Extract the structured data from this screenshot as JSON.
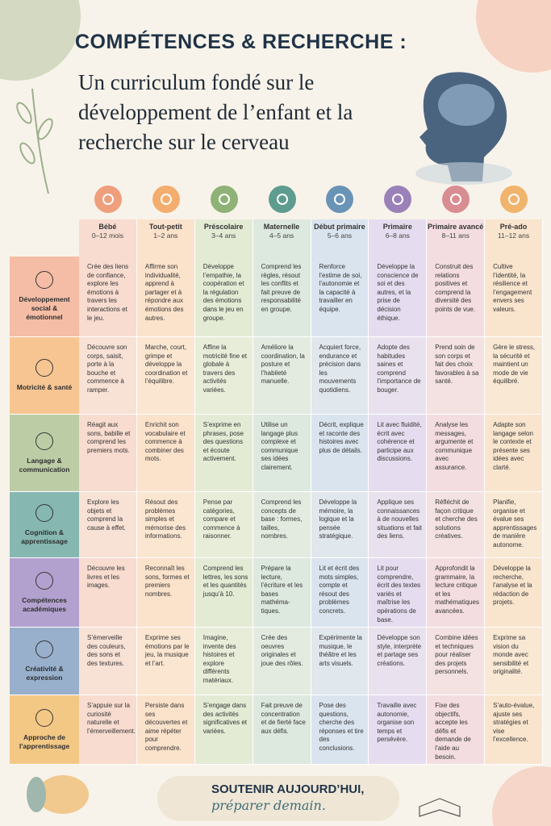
{
  "header": {
    "title": "COMPÉTENCES & RECHERCHE :",
    "subtitle": "Un curriculum fondé sur le développement de l’enfant et la recherche sur le cerveau"
  },
  "table": {
    "stages": [
      {
        "name": "Bébé",
        "ages": "0–12 mois"
      },
      {
        "name": "Tout-petit",
        "ages": "1–2 ans"
      },
      {
        "name": "Préscolaire",
        "ages": "3–4 ans"
      },
      {
        "name": "Maternelle",
        "ages": "4–5 ans"
      },
      {
        "name": "Début primaire",
        "ages": "5–6 ans"
      },
      {
        "name": "Primaire",
        "ages": "6–8 ans"
      },
      {
        "name": "Primaire avancé",
        "ages": "8–11 ans"
      },
      {
        "name": "Pré-ado",
        "ages": "11–12 ans"
      }
    ],
    "domains": [
      "Développement social & émotionnel",
      "Motricité & santé",
      "Langage & communication",
      "Cognition & apprentissage",
      "Compétences académiques",
      "Créativité & expression",
      "Approche de l’apprentissage"
    ],
    "rows": [
      [
        "Crée des liens de confiance, explore les émotions à travers les interactions et le jeu.",
        "Affirme son individualité, apprend à partager et à répondre aux émotions des autres.",
        "Développe l’empathie, la coopération et la régulation des émotions dans le jeu en groupe.",
        "Comprend les règles, résout les conflits et fait preuve de responsabilité en groupe.",
        "Renforce l’estime de soi, l’autonomie et la capacité à travailler en équipe.",
        "Développe la conscience de soi et des autres, et la prise de décision éthique.",
        "Construit des relations positives et comprend la diversité des points de vue.",
        "Cultive l’identité, la résilience et l’engagement envers ses valeurs."
      ],
      [
        "Découvre son corps, saisit, porte à la bouche et commence à ramper.",
        "Marche, court, grimpe et développe la coordination et l’équilibre.",
        "Affine la motricité fine et globale à travers des activités variées.",
        "Améliore la coordination, la posture et l’habileté manuelle.",
        "Acquiert force, endurance et précision dans les mouvements quotidiens.",
        "Adopte des habitudes saines et comprend l’importance de bouger.",
        "Prend soin de son corps et fait des choix favorables à sa santé.",
        "Gère le stress, la sécurité et maintient un mode de vie équilibré."
      ],
      [
        "Réagit aux sons, babille et comprend les premiers mots.",
        "Enrichit son vocabulaire et commence à combiner des mots.",
        "S’exprime en phrases, pose des questions et écoute activement.",
        "Utilise un langage plus complexe et communique ses idées clairement.",
        "Décrit, explique et raconte des histoires avec plus de détails.",
        "Lit avec fluidité, écrit avec cohérence et participe aux discussions.",
        "Analyse les messages, argumente et communique avec assurance.",
        "Adapte son langage selon le contexte et présente ses idées avec clarté."
      ],
      [
        "Explore les objets et comprend la cause à effet.",
        "Résout des problèmes simples et mémorise des informations.",
        "Pense par catégories, compare et commence à raisonner.",
        "Comprend les concepts de base : formes, tailles, nombres.",
        "Développe la mémoire, la logique et la pensée stratégique.",
        "Applique ses connaissances à de nouvelles situations et fait des liens.",
        "Réfléchit de façon critique et cherche des solutions créatives.",
        "Planifie, organise et évalue ses apprentissages de manière autonome."
      ],
      [
        "Découvre les livres et les images.",
        "Reconnaît les sons, formes et premiers nombres.",
        "Comprend les lettres, les sons et les quantités jusqu’à 10.",
        "Prépare la lecture, l’écriture et les bases mathéma­tiques.",
        "Lit et écrit des mots simples, compte et résout des problèmes concrets.",
        "Lit pour comprendre, écrit des textes variés et maîtrise les opérations de base.",
        "Approfondit la grammaire, la lecture critique et les mathématiques avancées.",
        "Développe la recherche, l’analyse et la rédaction de projets."
      ],
      [
        "S’émerveille des couleurs, des sons et des textures.",
        "Exprime ses émotions par le jeu, la musique et l’art.",
        "Imagine, invente des histoires et explore différents matériaux.",
        "Crée des oeuvres originales et joue des rôles.",
        "Expérimente la musique, le théâtre et les arts visuels.",
        "Développe son style, interprète et partage ses créations.",
        "Combine idées et techniques pour réaliser des projets personnels.",
        "Exprime sa vision du monde avec sensibilité et originalité."
      ],
      [
        "S’appuie sur la curiosité naturelle et l’émerveillement.",
        "Persiste dans ses découvertes et aime répéter pour comprendre.",
        "S’engage dans des activités significatives et variées.",
        "Fait preuve de concentration et de fierté face aux défis.",
        "Pose des questions, cherche des réponses et tire des conclusions.",
        "Travaille avec autonomie, organise son temps et persévère.",
        "Fixe des objectifs, accepte les défis et demande de l’aide au besoin.",
        "S’auto-évalue, ajuste ses stratégies et vise l’excellence."
      ]
    ]
  },
  "footer": {
    "line1": "SOUTENIR AUJOURD’HUI,",
    "line2": "préparer demain."
  }
}
